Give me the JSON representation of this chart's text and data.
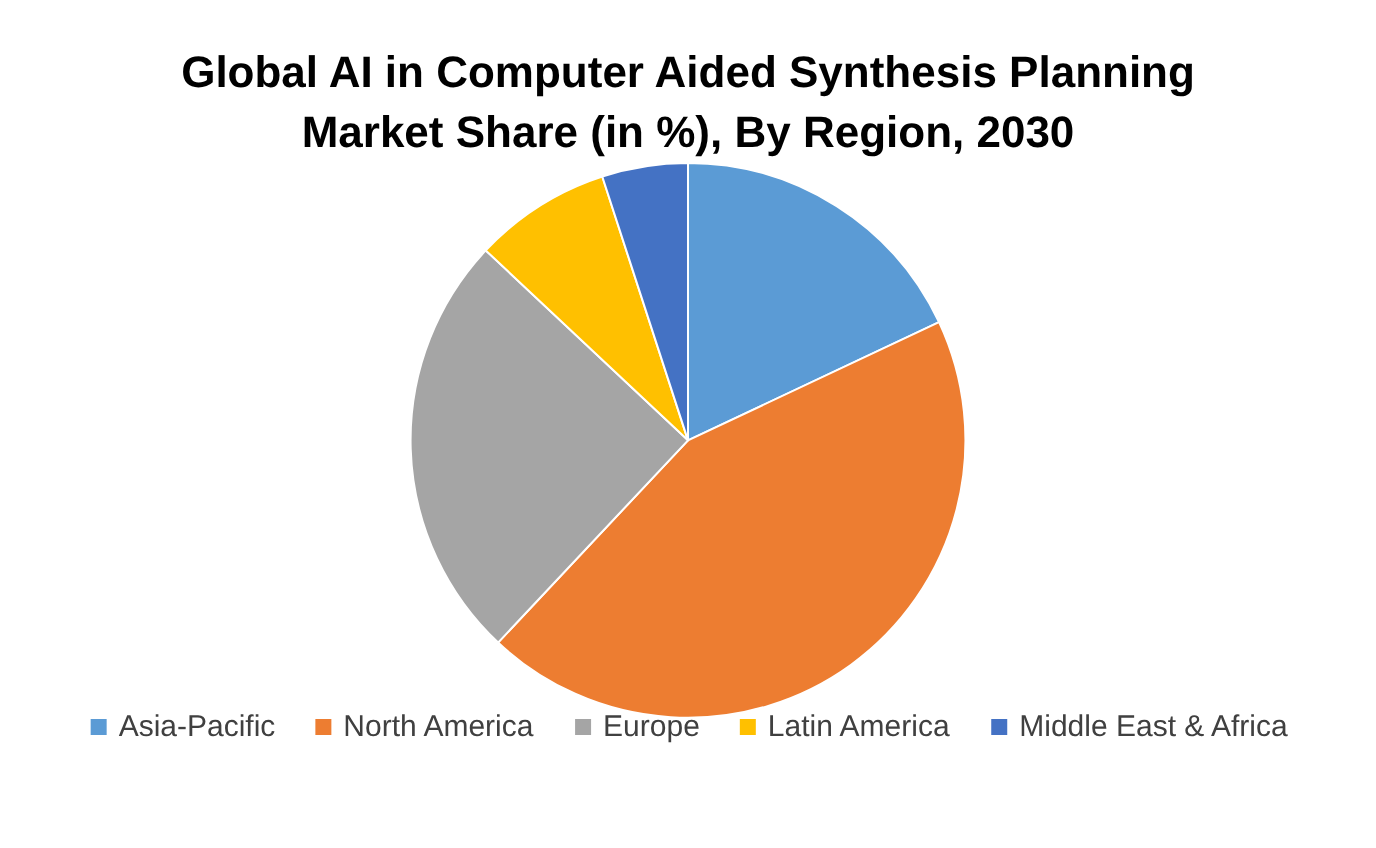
{
  "chart_data": {
    "type": "pie",
    "title": "Global AI in Computer Aided Synthesis Planning\nMarket Share (in %), By Region, 2030",
    "categories": [
      "Asia-Pacific",
      "North America",
      "Europe",
      "Latin America",
      "Middle East & Africa"
    ],
    "values": [
      18,
      44,
      25,
      8,
      5
    ],
    "colors": [
      "#5b9bd5",
      "#ed7d31",
      "#a5a5a5",
      "#ffc000",
      "#4472c4"
    ],
    "legend": "bottom"
  }
}
